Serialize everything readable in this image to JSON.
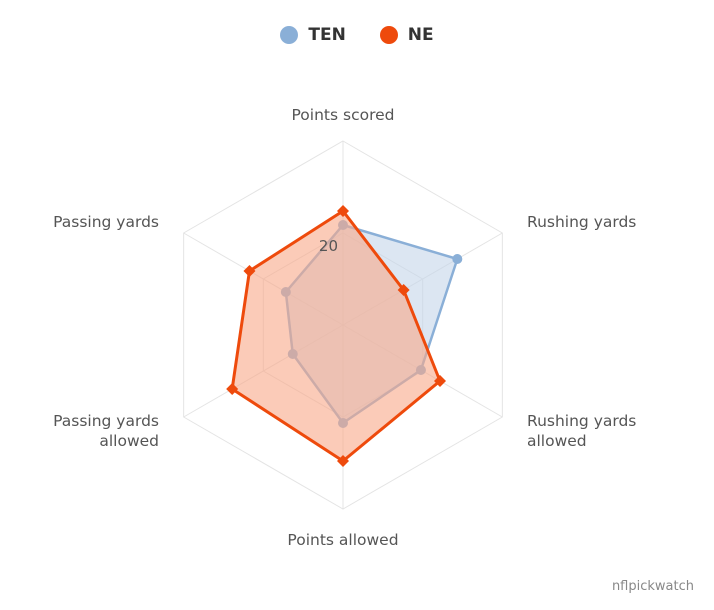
{
  "legend": {
    "items": [
      {
        "label": "TEN",
        "color": "#8aafd7"
      },
      {
        "label": "NE",
        "color": "#ee4a0c"
      }
    ]
  },
  "credit": "nflpickwatch",
  "chart_data": {
    "type": "radar",
    "categories": [
      [
        "Points scored"
      ],
      [
        "Rushing yards"
      ],
      [
        "Rushing yards",
        "allowed"
      ],
      [
        "Points allowed"
      ],
      [
        "Passing yards",
        "allowed"
      ],
      [
        "Passing yards"
      ]
    ],
    "tick_labels": [
      "20"
    ],
    "tick_label_value": 20,
    "rmax": 46,
    "grid": true,
    "legend_position": "top-center",
    "series": [
      {
        "name": "TEN",
        "color": "#8aafd7",
        "fill": "#c4d6e9",
        "marker": "circle",
        "values": [
          25,
          33,
          22.5,
          24.5,
          14.5,
          16.5
        ]
      },
      {
        "name": "NE",
        "color": "#ee4a0c",
        "fill": "#f9a889",
        "marker": "diamond",
        "values": [
          28.5,
          17.5,
          28,
          34,
          32,
          27
        ]
      }
    ]
  }
}
